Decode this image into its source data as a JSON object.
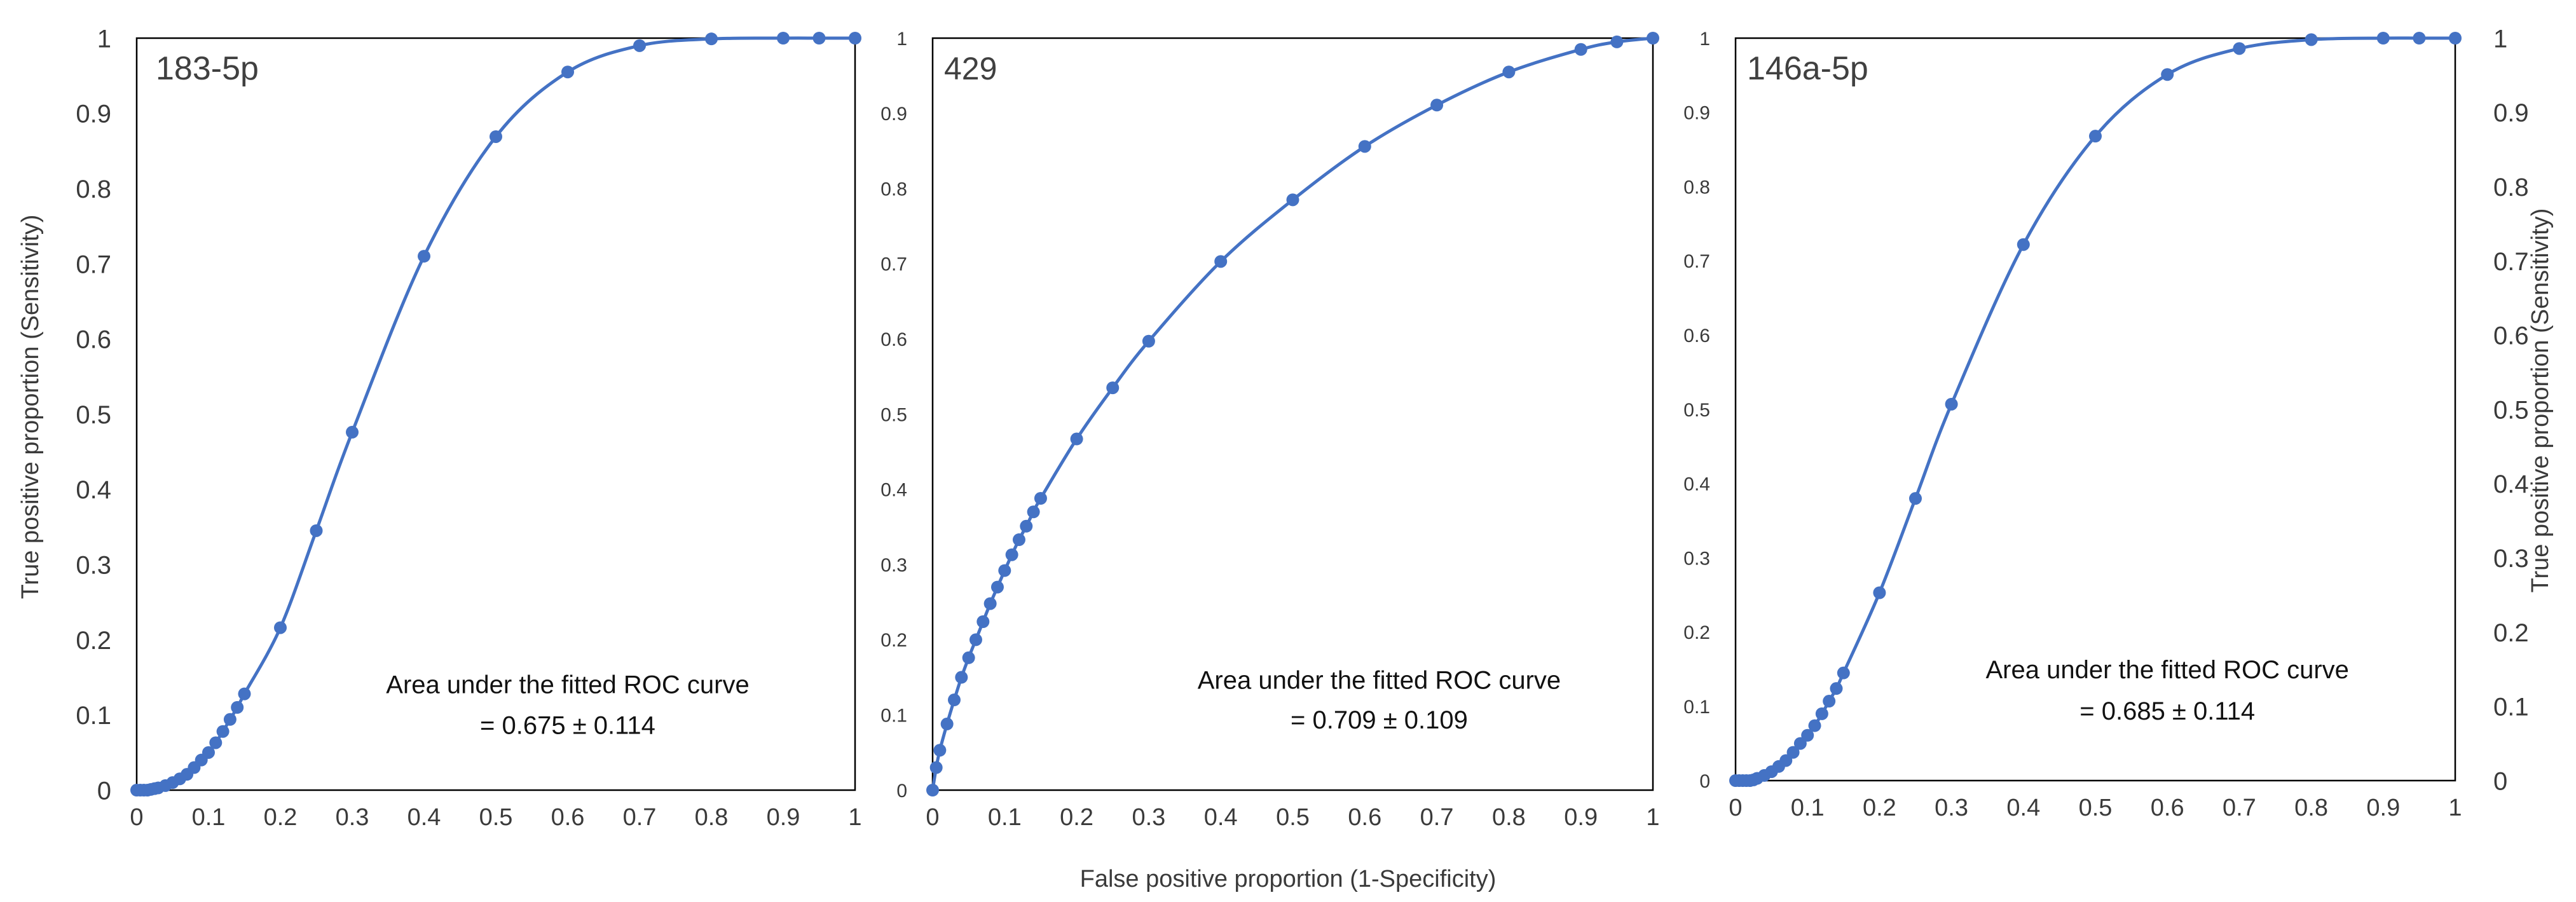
{
  "chart_data": {
    "type": "line",
    "shared_xlabel": "False positive proportion  (1-Specificity)",
    "left_ylabel": "True positive proportion  (Sensitivity)",
    "right_ylabel": "True positive proportion  (Sensitivity)",
    "colors": {
      "series": "#4472c4",
      "frame": "#000000",
      "text": "#404040"
    },
    "panels": [
      {
        "title": "183-5p",
        "xlim": [
          0,
          1
        ],
        "ylim": [
          0,
          1
        ],
        "x_ticks": [
          "0",
          "0.1",
          "0.2",
          "0.3",
          "0.4",
          "0.5",
          "0.6",
          "0.7",
          "0.8",
          "0.9",
          "1"
        ],
        "y_ticks": [
          "0",
          "0.1",
          "0.2",
          "0.3",
          "0.4",
          "0.5",
          "0.6",
          "0.7",
          "0.8",
          "0.9",
          "1"
        ],
        "annotation_line1": "Area under the fitted ROC curve",
        "annotation_line2": "=  0.675 ± 0.114",
        "series": {
          "x": [
            0,
            0.005,
            0.01,
            0.015,
            0.02,
            0.025,
            0.03,
            0.04,
            0.05,
            0.06,
            0.07,
            0.08,
            0.09,
            0.1,
            0.11,
            0.12,
            0.13,
            0.14,
            0.15,
            0.2,
            0.25,
            0.3,
            0.4,
            0.5,
            0.6,
            0.7,
            0.8,
            0.9,
            0.95,
            1
          ],
          "y": [
            0,
            0,
            0,
            0,
            0.001,
            0.002,
            0.003,
            0.006,
            0.01,
            0.015,
            0.021,
            0.03,
            0.04,
            0.05,
            0.063,
            0.078,
            0.094,
            0.11,
            0.128,
            0.216,
            0.345,
            0.476,
            0.71,
            0.869,
            0.955,
            0.99,
            0.999,
            1,
            1,
            1
          ]
        }
      },
      {
        "title": "429",
        "xlim": [
          0,
          1
        ],
        "ylim": [
          0,
          1
        ],
        "x_ticks": [
          "0",
          "0.1",
          "0.2",
          "0.3",
          "0.4",
          "0.5",
          "0.6",
          "0.7",
          "0.8",
          "0.9",
          "1"
        ],
        "y_ticks": [
          "0",
          "0.1",
          "0.2",
          "0.3",
          "0.4",
          "0.5",
          "0.6",
          "0.7",
          "0.8",
          "0.9",
          "1"
        ],
        "annotation_line1": "Area under the fitted ROC curve",
        "annotation_line2": "=  0.709 ± 0.109",
        "series": {
          "x": [
            0,
            0.005,
            0.01,
            0.02,
            0.03,
            0.04,
            0.05,
            0.06,
            0.07,
            0.08,
            0.09,
            0.1,
            0.11,
            0.12,
            0.13,
            0.14,
            0.15,
            0.2,
            0.25,
            0.3,
            0.4,
            0.5,
            0.6,
            0.7,
            0.8,
            0.9,
            0.95,
            1
          ],
          "y": [
            0,
            0.03,
            0.053,
            0.088,
            0.12,
            0.15,
            0.176,
            0.2,
            0.224,
            0.248,
            0.27,
            0.292,
            0.313,
            0.333,
            0.351,
            0.37,
            0.388,
            0.467,
            0.535,
            0.597,
            0.703,
            0.785,
            0.856,
            0.911,
            0.955,
            0.985,
            0.995,
            1
          ]
        }
      },
      {
        "title": "146a-5p",
        "xlim": [
          0,
          1
        ],
        "ylim": [
          0,
          1
        ],
        "x_ticks": [
          "0",
          "0.1",
          "0.2",
          "0.3",
          "0.4",
          "0.5",
          "0.6",
          "0.7",
          "0.8",
          "0.9",
          "1"
        ],
        "y_ticks": [
          "0",
          "0.1",
          "0.2",
          "0.3",
          "0.4",
          "0.5",
          "0.6",
          "0.7",
          "0.8",
          "0.9",
          "1"
        ],
        "annotation_line1": "Area under the fitted ROC curve",
        "annotation_line2": "=  0.685 ± 0.114",
        "series": {
          "x": [
            0,
            0.005,
            0.01,
            0.015,
            0.02,
            0.025,
            0.03,
            0.04,
            0.05,
            0.06,
            0.07,
            0.08,
            0.09,
            0.1,
            0.11,
            0.12,
            0.13,
            0.14,
            0.15,
            0.2,
            0.25,
            0.3,
            0.4,
            0.5,
            0.6,
            0.7,
            0.8,
            0.9,
            0.95,
            1
          ],
          "y": [
            0,
            0,
            0,
            0,
            0,
            0.001,
            0.003,
            0.007,
            0.012,
            0.019,
            0.027,
            0.038,
            0.05,
            0.061,
            0.074,
            0.09,
            0.107,
            0.124,
            0.145,
            0.253,
            0.38,
            0.507,
            0.722,
            0.868,
            0.951,
            0.986,
            0.998,
            1,
            1,
            1
          ]
        }
      }
    ]
  }
}
